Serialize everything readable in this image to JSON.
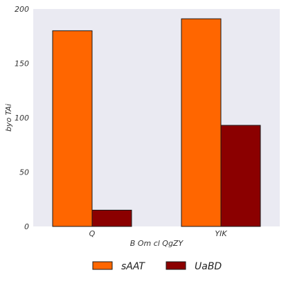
{
  "chart_data": {
    "type": "bar",
    "categories": [
      "Q",
      "YIK"
    ],
    "series": [
      {
        "name": "sAAT",
        "values": [
          180,
          191
        ],
        "color": "#ff6600"
      },
      {
        "name": "UaBD",
        "values": [
          15,
          93
        ],
        "color": "#8b0000"
      }
    ],
    "xlabel": "B Om cl QgZY",
    "ylabel": "byo TAi",
    "ylim": [
      0,
      200
    ],
    "yticks": [
      0,
      50,
      100,
      150,
      200
    ],
    "grid": false,
    "legend_position": "bottom-center",
    "plot_background": "#eaeaf2"
  }
}
